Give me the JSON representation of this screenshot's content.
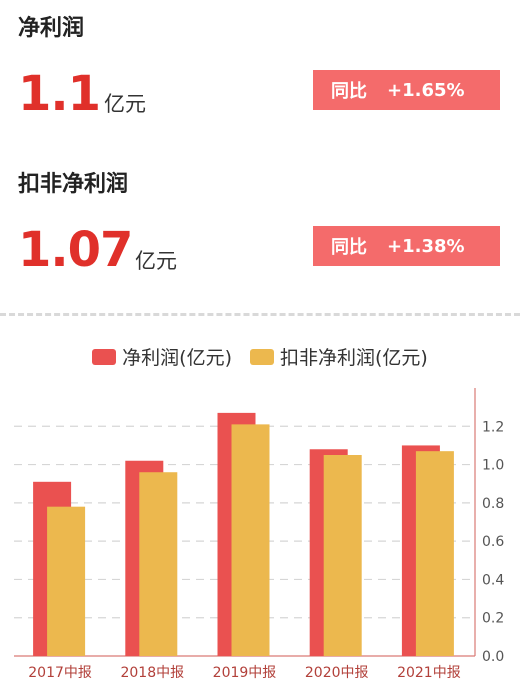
{
  "net_profit": {
    "title": "净利润",
    "value": "1.1",
    "unit": "亿元",
    "yoy_label": "同比",
    "yoy_value": "+1.65%"
  },
  "deducted_net_profit": {
    "title": "扣非净利润",
    "value": "1.07",
    "unit": "亿元",
    "yoy_label": "同比",
    "yoy_value": "+1.38%"
  },
  "colors": {
    "accent_red": "#e0302a",
    "badge": "#f46b6b",
    "series_net": "#ea5150",
    "series_deducted": "#ecb84e"
  },
  "chart_data": {
    "type": "bar",
    "categories": [
      "2017中报",
      "2018中报",
      "2019中报",
      "2020中报",
      "2021中报"
    ],
    "series": [
      {
        "name": "净利润(亿元)",
        "values": [
          0.91,
          1.02,
          1.27,
          1.08,
          1.1
        ]
      },
      {
        "name": "扣非净利润(亿元)",
        "values": [
          0.78,
          0.96,
          1.21,
          1.05,
          1.07
        ]
      }
    ],
    "y_ticks": [
      "0.0",
      "0.2",
      "0.4",
      "0.6",
      "0.8",
      "1.0",
      "1.2"
    ],
    "ylim": [
      0,
      1.4
    ],
    "y_axis_position": "right",
    "grid": true,
    "legend_position": "top-center"
  }
}
